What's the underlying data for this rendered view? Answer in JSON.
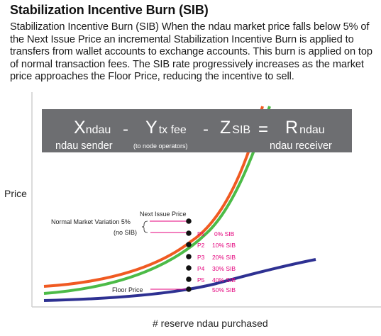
{
  "heading": "Stabilization Incentive Burn (SIB)",
  "paragraph": "Stabilization Incentive Burn (SIB) When the ndau market price falls below 5% of the Next Issue Price an incremental Stabilization Incentive Burn is applied to transfers from wallet accounts to exchange accounts. This burn is applied on top of normal transaction fees. The SIB rate progressively increases as the market price approaches the Floor Price, reducing the incentive to sell.",
  "formula": {
    "x_main": "X",
    "x_sub": "ndau",
    "minus1": "-",
    "y_main": "Y",
    "y_sub": "tx fee",
    "minus2": "-",
    "z_main": "Z",
    "z_sub": "SIB",
    "equals": "=",
    "r_main": "R",
    "r_sub": "ndau",
    "sender_label": "ndau sender",
    "node_label": "(to node operators)",
    "receiver_label": "ndau receiver",
    "bg_color": "#6d6e71"
  },
  "axes": {
    "y_label": "Price",
    "x_label": "# reserve ndau purchased"
  },
  "annotations": {
    "next_issue_price": "Next Issue Price",
    "normal_variation": "Normal Market Variation 5%",
    "no_sib": "(no SIB)",
    "floor_price": "Floor Price"
  },
  "points": [
    {
      "label": "P1",
      "rate": "0% SIB"
    },
    {
      "label": "P2",
      "rate": "10% SIB"
    },
    {
      "label": "P3",
      "rate": "20% SIB"
    },
    {
      "label": "P4",
      "rate": "30% SIB"
    },
    {
      "label": "P5",
      "rate": "40% SIB"
    }
  ],
  "floor_rate": "50% SIB",
  "colors": {
    "orange_curve": "#f05a22",
    "green_curve": "#4cbb47",
    "navy_curve": "#2e3192",
    "pink": "#e4007c",
    "point_label": "#e4007c"
  }
}
